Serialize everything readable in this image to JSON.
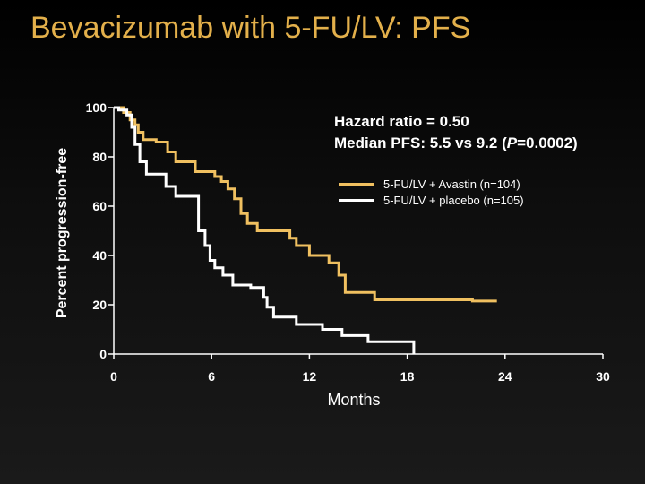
{
  "title": "Bevacizumab with 5-FU/LV: PFS",
  "annotations": {
    "hazard_ratio": "Hazard ratio = 0.50",
    "median_pfs_prefix": "Median PFS: 5.5 vs 9.2 (",
    "median_pfs_p": "P",
    "median_pfs_suffix": "=0.0002)"
  },
  "colors": {
    "accent": "#e3b04b",
    "avastin": "#f0c060",
    "placebo": "#ffffff",
    "background": "#000000"
  },
  "chart_data": {
    "type": "line",
    "title": "Bevacizumab with 5-FU/LV: PFS",
    "xlabel": "Months",
    "ylabel": "Percent progression-free",
    "xlim": [
      0,
      30
    ],
    "ylim": [
      0,
      100
    ],
    "xticks": [
      0,
      6,
      12,
      18,
      24,
      30
    ],
    "yticks": [
      0,
      20,
      40,
      60,
      80,
      100
    ],
    "grid": false,
    "legend_position": "top-right",
    "series": [
      {
        "name": "5-FU/LV + Avastin (n=104)",
        "color": "#f0c060",
        "step": true,
        "points": [
          [
            0,
            100
          ],
          [
            0.6,
            100
          ],
          [
            0.6,
            98
          ],
          [
            1.0,
            98
          ],
          [
            1.0,
            95
          ],
          [
            1.3,
            95
          ],
          [
            1.3,
            93
          ],
          [
            1.5,
            93
          ],
          [
            1.5,
            90
          ],
          [
            1.8,
            90
          ],
          [
            1.8,
            87
          ],
          [
            2.6,
            87
          ],
          [
            2.6,
            86
          ],
          [
            3.3,
            86
          ],
          [
            3.3,
            82
          ],
          [
            3.8,
            82
          ],
          [
            3.8,
            78
          ],
          [
            5.0,
            78
          ],
          [
            5.0,
            74
          ],
          [
            6.2,
            74
          ],
          [
            6.2,
            72
          ],
          [
            6.6,
            72
          ],
          [
            6.6,
            70
          ],
          [
            7.0,
            70
          ],
          [
            7.0,
            67
          ],
          [
            7.4,
            67
          ],
          [
            7.4,
            63
          ],
          [
            7.8,
            63
          ],
          [
            7.8,
            57
          ],
          [
            8.2,
            57
          ],
          [
            8.2,
            53
          ],
          [
            8.8,
            53
          ],
          [
            8.8,
            50
          ],
          [
            10.8,
            50
          ],
          [
            10.8,
            47
          ],
          [
            11.2,
            47
          ],
          [
            11.2,
            44
          ],
          [
            12.0,
            44
          ],
          [
            12.0,
            40
          ],
          [
            13.2,
            40
          ],
          [
            13.2,
            37
          ],
          [
            13.8,
            37
          ],
          [
            13.8,
            32
          ],
          [
            14.2,
            32
          ],
          [
            14.2,
            25
          ],
          [
            16.0,
            25
          ],
          [
            16.0,
            22
          ],
          [
            22.0,
            22
          ],
          [
            22.0,
            21.5
          ],
          [
            23.5,
            21.5
          ]
        ]
      },
      {
        "name": "5-FU/LV + placebo (n=105)",
        "color": "#ffffff",
        "step": true,
        "points": [
          [
            0,
            100
          ],
          [
            0.3,
            100
          ],
          [
            0.3,
            99
          ],
          [
            0.8,
            99
          ],
          [
            0.8,
            97
          ],
          [
            1.1,
            97
          ],
          [
            1.1,
            92
          ],
          [
            1.3,
            92
          ],
          [
            1.3,
            85
          ],
          [
            1.6,
            85
          ],
          [
            1.6,
            78
          ],
          [
            2.0,
            78
          ],
          [
            2.0,
            73
          ],
          [
            3.2,
            73
          ],
          [
            3.2,
            68
          ],
          [
            3.8,
            68
          ],
          [
            3.8,
            64
          ],
          [
            5.2,
            64
          ],
          [
            5.2,
            50
          ],
          [
            5.6,
            50
          ],
          [
            5.6,
            44
          ],
          [
            5.9,
            44
          ],
          [
            5.9,
            38
          ],
          [
            6.2,
            38
          ],
          [
            6.2,
            35
          ],
          [
            6.7,
            35
          ],
          [
            6.7,
            32
          ],
          [
            7.3,
            32
          ],
          [
            7.3,
            28
          ],
          [
            8.4,
            28
          ],
          [
            8.4,
            27
          ],
          [
            9.2,
            27
          ],
          [
            9.2,
            23
          ],
          [
            9.4,
            23
          ],
          [
            9.4,
            19
          ],
          [
            9.8,
            19
          ],
          [
            9.8,
            15
          ],
          [
            11.2,
            15
          ],
          [
            11.2,
            12
          ],
          [
            12.8,
            12
          ],
          [
            12.8,
            10
          ],
          [
            14.0,
            10
          ],
          [
            14.0,
            7.5
          ],
          [
            15.6,
            7.5
          ],
          [
            15.6,
            5
          ],
          [
            18.4,
            5
          ],
          [
            18.4,
            0
          ]
        ]
      }
    ]
  }
}
